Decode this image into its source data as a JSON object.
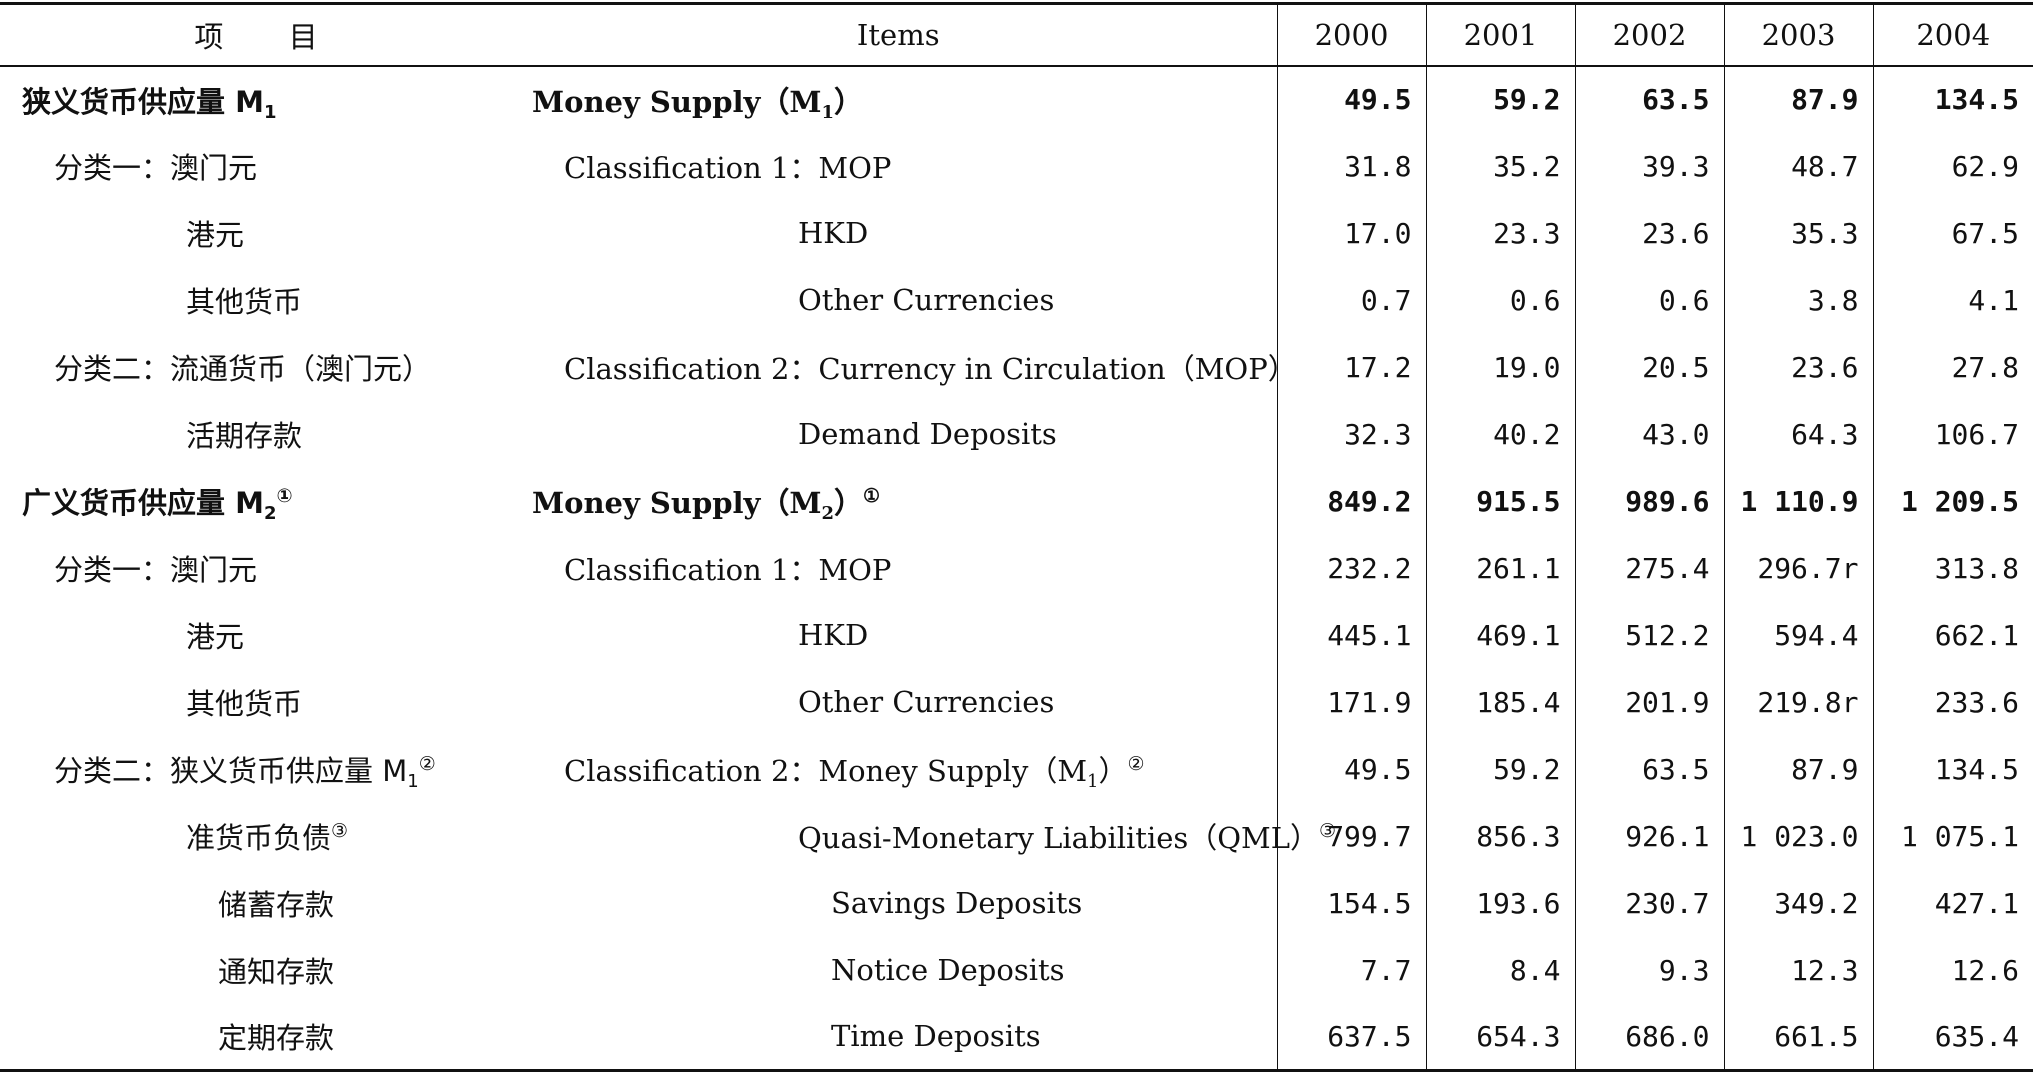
{
  "header": {
    "col_zh": "项 目",
    "col_en": "Items",
    "years": [
      "2000",
      "2001",
      "2002",
      "2003",
      "2004"
    ]
  },
  "rows": [
    {
      "zh": "狭义货币供应量 M",
      "zh_sub": "1",
      "zh_sup": "",
      "en": "Money Supply（M",
      "en_sub": "1",
      "en_after": "）",
      "en_sup": "",
      "bold": true,
      "level": 0,
      "values": [
        "49.5",
        "59.2",
        "63.5",
        "87.9",
        "134.5"
      ]
    },
    {
      "zh": "分类一：澳门元",
      "zh_sub": "",
      "zh_sup": "",
      "en": "Classification 1：MOP",
      "en_sub": "",
      "en_after": "",
      "en_sup": "",
      "bold": false,
      "level": 1,
      "values": [
        "31.8",
        "35.2",
        "39.3",
        "48.7",
        "62.9"
      ]
    },
    {
      "zh": "港元",
      "zh_sub": "",
      "zh_sup": "",
      "en": "HKD",
      "en_sub": "",
      "en_after": "",
      "en_sup": "",
      "bold": false,
      "level": 2,
      "values": [
        "17.0",
        "23.3",
        "23.6",
        "35.3",
        "67.5"
      ]
    },
    {
      "zh": "其他货币",
      "zh_sub": "",
      "zh_sup": "",
      "en": "Other Currencies",
      "en_sub": "",
      "en_after": "",
      "en_sup": "",
      "bold": false,
      "level": 2,
      "values": [
        "0.7",
        "0.6",
        "0.6",
        "3.8",
        "4.1"
      ]
    },
    {
      "zh": "分类二：流通货币（澳门元）",
      "zh_sub": "",
      "zh_sup": "",
      "en": "Classification 2：Currency in Circulation（MOP）",
      "en_sub": "",
      "en_after": "",
      "en_sup": "",
      "bold": false,
      "level": 1,
      "values": [
        "17.2",
        "19.0",
        "20.5",
        "23.6",
        "27.8"
      ]
    },
    {
      "zh": "活期存款",
      "zh_sub": "",
      "zh_sup": "",
      "en": "Demand Deposits",
      "en_sub": "",
      "en_after": "",
      "en_sup": "",
      "bold": false,
      "level": 2,
      "values": [
        "32.3",
        "40.2",
        "43.0",
        "64.3",
        "106.7"
      ]
    },
    {
      "zh": "广义货币供应量 M",
      "zh_sub": "2",
      "zh_sup": "①",
      "en": "Money Supply（M",
      "en_sub": "2",
      "en_after": "）",
      "en_sup": "①",
      "bold": true,
      "level": 0,
      "values": [
        "849.2",
        "915.5",
        "989.6",
        "1 110.9",
        "1 209.5"
      ]
    },
    {
      "zh": "分类一：澳门元",
      "zh_sub": "",
      "zh_sup": "",
      "en": "Classification 1：MOP",
      "en_sub": "",
      "en_after": "",
      "en_sup": "",
      "bold": false,
      "level": 1,
      "values": [
        "232.2",
        "261.1",
        "275.4",
        "296.7r",
        "313.8"
      ]
    },
    {
      "zh": "港元",
      "zh_sub": "",
      "zh_sup": "",
      "en": "HKD",
      "en_sub": "",
      "en_after": "",
      "en_sup": "",
      "bold": false,
      "level": 2,
      "values": [
        "445.1",
        "469.1",
        "512.2",
        "594.4",
        "662.1"
      ]
    },
    {
      "zh": "其他货币",
      "zh_sub": "",
      "zh_sup": "",
      "en": "Other Currencies",
      "en_sub": "",
      "en_after": "",
      "en_sup": "",
      "bold": false,
      "level": 2,
      "values": [
        "171.9",
        "185.4",
        "201.9",
        "219.8r",
        "233.6"
      ]
    },
    {
      "zh": "分类二：狭义货币供应量 M",
      "zh_sub": "1",
      "zh_sup": "②",
      "en": "Classification 2：Money Supply（M",
      "en_sub": "1",
      "en_after": "）",
      "en_sup": "②",
      "bold": false,
      "level": 1,
      "values": [
        "49.5",
        "59.2",
        "63.5",
        "87.9",
        "134.5"
      ]
    },
    {
      "zh": "准货币负债",
      "zh_sub": "",
      "zh_sup": "③",
      "en": "Quasi-Monetary Liabilities（QML）",
      "en_sub": "",
      "en_after": "",
      "en_sup": "③",
      "bold": false,
      "level": 2,
      "values": [
        "799.7",
        "856.3",
        "926.1",
        "1 023.0",
        "1 075.1"
      ]
    },
    {
      "zh": "储蓄存款",
      "zh_sub": "",
      "zh_sup": "",
      "en": "Savings Deposits",
      "en_sub": "",
      "en_after": "",
      "en_sup": "",
      "bold": false,
      "level": 3,
      "values": [
        "154.5",
        "193.6",
        "230.7",
        "349.2",
        "427.1"
      ]
    },
    {
      "zh": "通知存款",
      "zh_sub": "",
      "zh_sup": "",
      "en": "Notice Deposits",
      "en_sub": "",
      "en_after": "",
      "en_sup": "",
      "bold": false,
      "level": 3,
      "values": [
        "7.7",
        "8.4",
        "9.3",
        "12.3",
        "12.6"
      ]
    },
    {
      "zh": "定期存款",
      "zh_sub": "",
      "zh_sup": "",
      "en": "Time Deposits",
      "en_sub": "",
      "en_after": "",
      "en_sup": "",
      "bold": false,
      "level": 3,
      "values": [
        "637.5",
        "654.3",
        "686.0",
        "661.5",
        "635.4"
      ]
    }
  ]
}
